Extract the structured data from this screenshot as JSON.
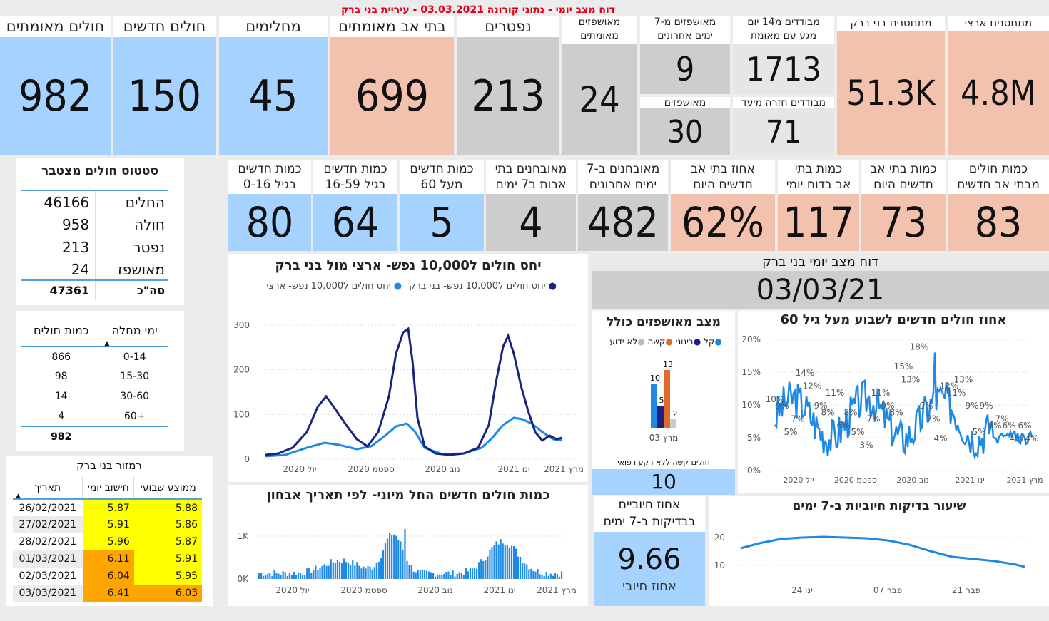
{
  "report_title": "דוח מצב יומי - נתוני קורונה 03.03.2021 - עיריית בני ברק",
  "top_tiles": [
    {
      "label": "חולים מאומתים",
      "value": "982"
    },
    {
      "label": "חולים חדשים",
      "value": "150"
    },
    {
      "label": "מחלימים",
      "value": "45"
    },
    {
      "label": "בתי אב מאומתים",
      "value": "699"
    },
    {
      "label": "נפטרים",
      "value": "213"
    },
    {
      "label": "מאושפזים\nמאומתים",
      "value": "24"
    },
    {
      "label": "מאושפזים מ-7\nימים אחרונים",
      "value": "9"
    },
    {
      "label": "מאושפזים",
      "value": "30"
    },
    {
      "label": "מבודדים מ14 יום\nמגע עם מאומת",
      "value": "1713"
    },
    {
      "label": "מבודדים חזרה מיעד",
      "value": "71"
    },
    {
      "label": "מתחסנים בני ברק",
      "value": "51.3K"
    },
    {
      "label": "מתחסנים ארצי",
      "value": "4.8M"
    }
  ],
  "mid_tiles": [
    {
      "label": "כמות חדשים\nבגיל 0-16",
      "value": "80"
    },
    {
      "label": "כמות חדשים\nבגיל 16-59",
      "value": "64"
    },
    {
      "label": "כמות חדשים\nמעל 60",
      "value": "5"
    },
    {
      "label": "מאובחנים בתי\nאבות ב7 ימים",
      "value": "4"
    },
    {
      "label": "מאובחנים ב-7\nימים אחרונים",
      "value": "482"
    },
    {
      "label": "אחוז בתי אב\nחדשים היום",
      "value": "62%"
    },
    {
      "label": "כמות בתי\nאב בדוח יומי",
      "value": "117"
    },
    {
      "label": "כמות בתי אב\nחדשים היום",
      "value": "73"
    },
    {
      "label": "כמות חולים\nמבתי אב חדשים",
      "value": "83"
    }
  ],
  "status_table": {
    "title": "סטטוס חולים מצטבר",
    "rows": [
      {
        "label": "החלים",
        "value": "46166"
      },
      {
        "label": "חולה",
        "value": "958"
      },
      {
        "label": "נפטר",
        "value": "213"
      },
      {
        "label": "מאושפז",
        "value": "24"
      }
    ],
    "total_label": "סה\"כ",
    "total_value": "47361"
  },
  "days_table": {
    "headers": [
      "ימי מחלה",
      "כמות חולים"
    ],
    "rows": [
      {
        "days": "0-14",
        "count": "866"
      },
      {
        "days": "15-30",
        "count": "98"
      },
      {
        "days": "30-60",
        "count": "14"
      },
      {
        "days": "60+",
        "count": "4"
      }
    ],
    "total": "982"
  },
  "ramzor": {
    "title": "רמזור בני ברק",
    "headers": [
      "תאריך",
      "חישוב יומי",
      "ממוצע שבועי"
    ],
    "rows": [
      {
        "date": "26/02/2021",
        "daily": "5.87",
        "weekly": "5.88",
        "dc": "yellow",
        "wc": "yellow"
      },
      {
        "date": "27/02/2021",
        "daily": "5.91",
        "weekly": "5.86",
        "dc": "yellow",
        "wc": "yellow"
      },
      {
        "date": "28/02/2021",
        "daily": "5.96",
        "weekly": "5.87",
        "dc": "yellow",
        "wc": "yellow"
      },
      {
        "date": "01/03/2021",
        "daily": "6.11",
        "weekly": "5.91",
        "dc": "orange",
        "wc": "yellow"
      },
      {
        "date": "02/03/2021",
        "daily": "6.04",
        "weekly": "5.95",
        "dc": "orange",
        "wc": "yellow"
      },
      {
        "date": "03/03/2021",
        "daily": "6.41",
        "weekly": "6.03",
        "dc": "orange",
        "wc": "orange"
      }
    ]
  },
  "ratio_chart": {
    "title": "יחס חולים ל10,000 נפש- ארצי מול בני ברק",
    "legend": [
      "יחס חולים ל10,000 נפש- בני ברק",
      "יחס חולים ל10,000 נפש- ארצי"
    ],
    "x_ticks": [
      "יול 2020",
      "ספטמ 2020",
      "נוב 2020",
      "ינו 2021",
      "מרץ 2021"
    ],
    "y_ticks": [
      "0",
      "100",
      "200",
      "300"
    ]
  },
  "daily_chart": {
    "title": "כמות חולים חדשים החל מיוני- לפי תאריך אבחון",
    "x_ticks": [
      "יול 2020",
      "ספטמ 2020",
      "נוב 2020",
      "ינו 2021",
      "מרץ 2021"
    ],
    "y_ticks": [
      "0K",
      "1K"
    ]
  },
  "report_box": {
    "title": "דוח מצב יומי בני ברק",
    "date": "03/03/21"
  },
  "hosp_status": {
    "title": "מצב מאושפזים כולל",
    "legend": [
      "לא ידוע",
      "קשה",
      "בינוני",
      "קל"
    ],
    "x_label": "מרץ 03",
    "labels": [
      "10",
      "5",
      "13",
      "2"
    ],
    "severe_label": "חולים קשה ללא רקע רפואי",
    "severe_value": "10"
  },
  "pct60_chart": {
    "title": "אחוז חולים חדשים לשבוע מעל גיל 60",
    "x_ticks": [
      "יול 2020",
      "ספטמ 2020",
      "נוב 2020",
      "ינו 2021",
      "מרץ 2021"
    ],
    "y_ticks": [
      "0%",
      "5%",
      "10%",
      "15%",
      "20%"
    ],
    "point_labels": [
      "10%",
      "9%",
      "5%",
      "7%",
      "14%",
      "12%",
      "9%",
      "8%",
      "11%",
      "6%",
      "8%",
      "5%",
      "3%",
      "7%",
      "11%",
      "9%",
      "8%",
      "15%",
      "13%",
      "18%",
      "9%",
      "7%",
      "4%",
      "12%",
      "11%",
      "13%",
      "9%",
      "5%",
      "9%",
      "6%",
      "7%",
      "6%",
      "4%",
      "6%",
      "4%"
    ]
  },
  "positive_box": {
    "label": "אחוז חיוביים\nבבדיקות ב-7 ימים",
    "value": "9.66",
    "sub": "אחוז חיובי"
  },
  "pos_rate_chart": {
    "title": "שיעור בדיקות חיוביות ב-7 ימים",
    "x_ticks": [
      "ינו 24",
      "פבר 07",
      "פבר 21"
    ],
    "y_ticks": [
      "10",
      "20"
    ]
  },
  "colors": {
    "blue": "#a6d2ff",
    "salmon": "#f2c2ae",
    "gray": "#cdcdcd",
    "dark_line": "#1a237e",
    "light_line": "#1e88e5",
    "red_title": "#e0001b"
  }
}
